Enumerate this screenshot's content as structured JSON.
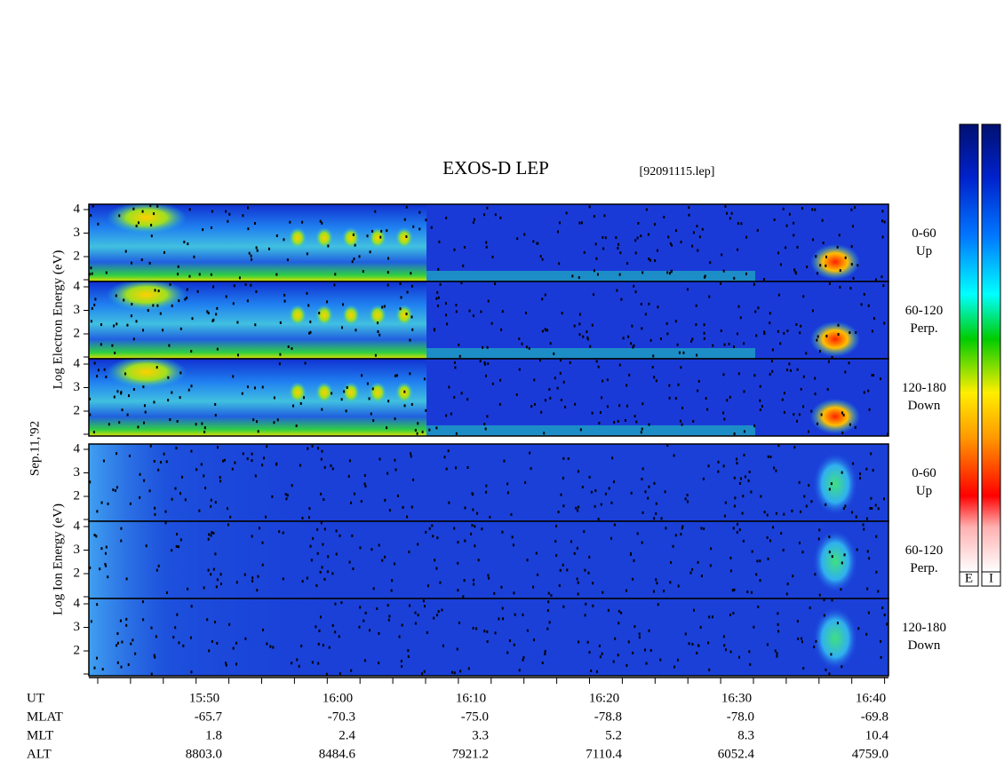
{
  "title": "EXOS-D LEP",
  "file": "[92091115.lep]",
  "side_labels": {
    "electron": "Log Electron Energy (eV)",
    "date": "Sep.11,'92",
    "ion": "Log Ion Energy (eV)"
  },
  "energy_ticks": [
    4,
    3,
    2
  ],
  "panels": [
    {
      "group": "electron",
      "angle": "0-60",
      "direction": "Up"
    },
    {
      "group": "electron",
      "angle": "60-120",
      "direction": "Perp."
    },
    {
      "group": "electron",
      "angle": "120-180",
      "direction": "Down"
    },
    {
      "group": "ion",
      "angle": "0-60",
      "direction": "Up"
    },
    {
      "group": "ion",
      "angle": "60-120",
      "direction": "Perp."
    },
    {
      "group": "ion",
      "angle": "120-180",
      "direction": "Down"
    }
  ],
  "ephemeris": [
    {
      "name": "UT",
      "values": [
        "15:50",
        "16:00",
        "16:10",
        "16:20",
        "16:30",
        "16:40"
      ]
    },
    {
      "name": "MLAT",
      "values": [
        "-65.7",
        "-70.3",
        "-75.0",
        "-78.8",
        "-78.0",
        "-69.8"
      ]
    },
    {
      "name": "MLT",
      "values": [
        "1.8",
        "2.4",
        "3.3",
        "5.2",
        "8.3",
        "10.4"
      ]
    },
    {
      "name": "ALT",
      "values": [
        "8803.0",
        "8484.6",
        "7921.2",
        "7110.4",
        "6052.4",
        "4759.0"
      ]
    }
  ],
  "colorbars": [
    "E",
    "I"
  ]
}
